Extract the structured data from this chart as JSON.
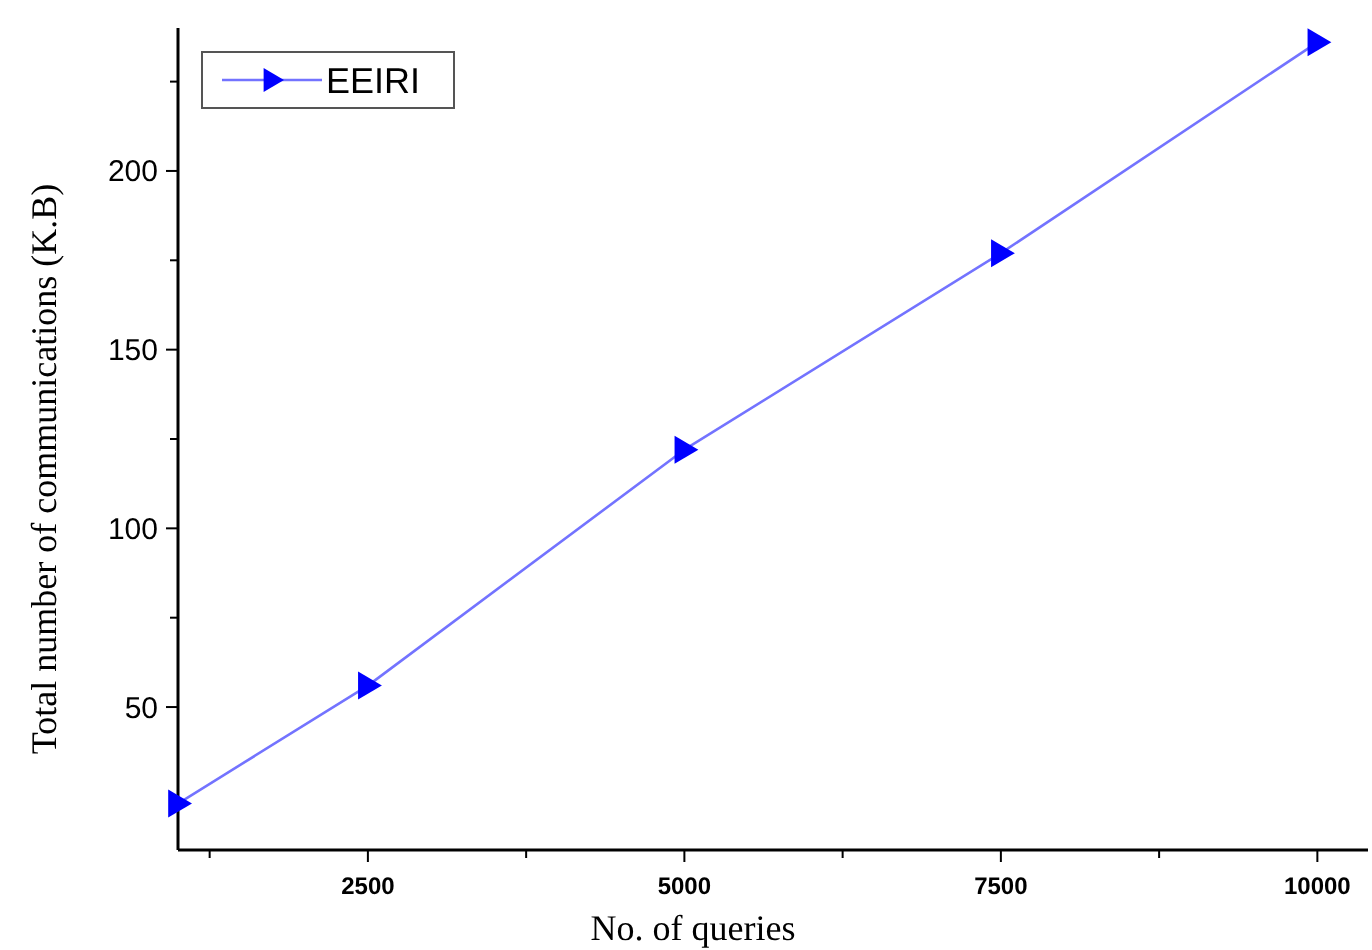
{
  "chart_data": {
    "type": "line",
    "xlabel": "No. of queries",
    "ylabel": "Total number of communications  (K.B)",
    "x": [
      1000,
      2500,
      5000,
      7500,
      10000
    ],
    "series": [
      {
        "name": "EEIRI",
        "color": "#0000ff",
        "values": [
          23,
          56,
          122,
          177,
          236
        ]
      }
    ],
    "xlim": [
      1000,
      10400
    ],
    "xticks": [
      {
        "value": 1250,
        "label": null
      },
      2500,
      {
        "value": 3750,
        "label": null
      },
      5000,
      {
        "value": 6250,
        "label": null
      },
      7500,
      {
        "value": 8750,
        "label": null
      },
      10000
    ],
    "ylim": [
      10,
      240
    ],
    "yticks": [
      {
        "value": 25,
        "label": null
      },
      50,
      {
        "value": 75,
        "label": null
      },
      100,
      {
        "value": 125,
        "label": null
      },
      150,
      {
        "value": 175,
        "label": null
      },
      200,
      {
        "value": 225,
        "label": null
      }
    ],
    "legend": "top left",
    "marker": "triangle",
    "line_style": "solid",
    "grid": false
  }
}
